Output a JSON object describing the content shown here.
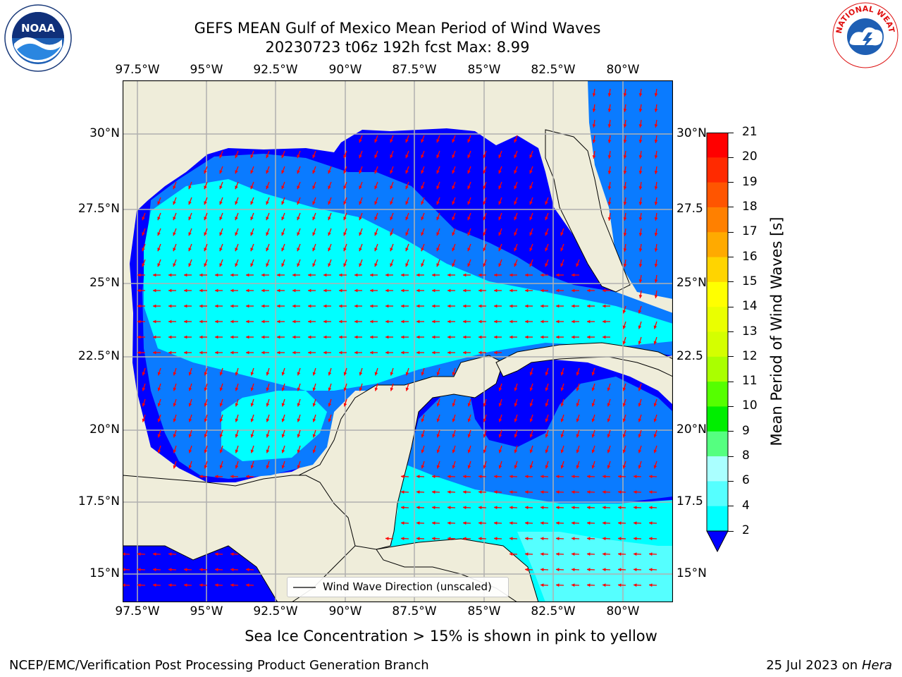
{
  "title": {
    "line1": "GEFS MEAN Gulf of Mexico Mean Period of Wind Waves",
    "line2": "20230723 t06z 192h fcst   Max: 8.99"
  },
  "logos": {
    "left": {
      "icon": "noaa-logo",
      "label": "NOAA",
      "ring_text": "NATIONAL OCEANIC AND ATMOSPHERIC ADMINISTRATION · U.S. DEPARTMENT OF COMMERCE"
    },
    "right": {
      "icon": "nws-logo",
      "ring_text": "NATIONAL WEATHER SERVICE"
    }
  },
  "map": {
    "lon_labels": [
      "97.5°W",
      "95°W",
      "92.5°W",
      "90°W",
      "87.5°W",
      "85°W",
      "82.5°W",
      "80°W"
    ],
    "lat_labels": [
      "30°N",
      "27.5°N",
      "25°N",
      "22.5°N",
      "20°N",
      "17.5°N",
      "15°N"
    ],
    "lat_labels_right": [
      "30°N",
      "27.5",
      "25°N",
      "22.5",
      "20°N",
      "17.5",
      "15°N"
    ],
    "legend": "Wind Wave Direction (unscaled)",
    "colors": {
      "land": "#efedda",
      "band_2_4": "#0a7bff",
      "band_lt2": "#0000ff",
      "band_4_6": "#00ffff",
      "band_6_8": "#55ffff",
      "arrow": "#ff0000",
      "grid": "#b0b0b0"
    }
  },
  "colorbar": {
    "label": "Mean Period of Wind Waves [s]",
    "ticks": [
      "21",
      "20",
      "19",
      "18",
      "17",
      "16",
      "15",
      "14",
      "13",
      "12",
      "11",
      "10",
      "9",
      "8",
      "6",
      "4",
      "2"
    ],
    "colors": [
      "#ff0000",
      "#ff2a00",
      "#ff5500",
      "#ff8000",
      "#ffaa00",
      "#ffd400",
      "#ffff00",
      "#eaff00",
      "#d4ff00",
      "#aaff00",
      "#55ff00",
      "#00ee00",
      "#55ff80",
      "#aaffff",
      "#55ffff",
      "#00ffff",
      "#0a7bff"
    ],
    "under_color": "#0000ff"
  },
  "ice_note": "Sea Ice Concentration > 15% is shown in pink to yellow",
  "footer": {
    "left": "NCEP/EMC/Verification Post Processing Product Generation Branch",
    "right_date": "25 Jul 2023 on ",
    "right_machine": "Hera"
  }
}
